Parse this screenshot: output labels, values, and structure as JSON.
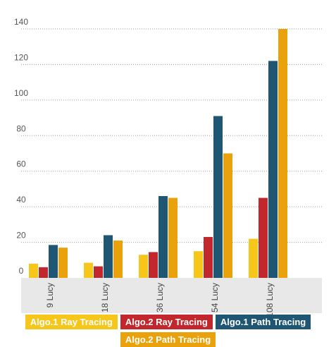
{
  "chart_data": {
    "type": "bar",
    "categories": [
      "9 Lucy",
      "18 Lucy",
      "36 Lucy",
      "54 Lucy",
      "108 Lucy"
    ],
    "series": [
      {
        "name": "Algo.1 Ray Tracing",
        "color": "#f7c61a",
        "values": [
          8,
          8.5,
          13,
          15,
          22
        ]
      },
      {
        "name": "Algo.2 Ray Tracing",
        "color": "#c1272d",
        "values": [
          6,
          6.5,
          14.5,
          23,
          45
        ]
      },
      {
        "name": "Algo.1 Path Tracing",
        "color": "#1f5673",
        "values": [
          18.5,
          24,
          46,
          91,
          122
        ]
      },
      {
        "name": "Algo.2 Path Tracing",
        "color": "#e9a20c",
        "values": [
          17,
          21,
          45,
          70,
          140
        ]
      }
    ],
    "y_ticks": [
      0,
      20,
      40,
      60,
      80,
      100,
      120,
      140
    ],
    "ylim": [
      0,
      140
    ],
    "title": "",
    "xlabel": "",
    "ylabel": "",
    "grid": true,
    "legend_placement": "bottom"
  }
}
